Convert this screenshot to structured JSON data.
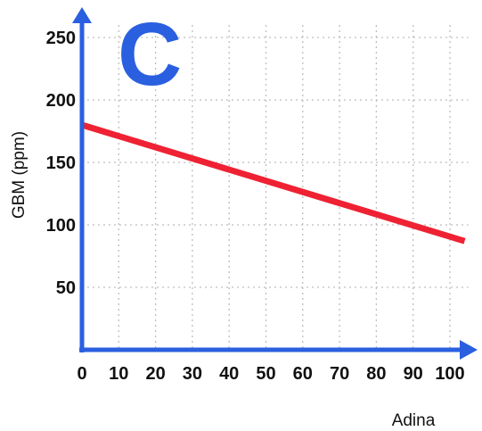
{
  "chart_data": {
    "type": "line",
    "panel_label": "C",
    "xlabel": "Adina",
    "ylabel": "GBM (ppm)",
    "xlim": [
      0,
      105
    ],
    "ylim": [
      0,
      260
    ],
    "x_ticks": [
      "0",
      "10",
      "20",
      "30",
      "40",
      "50",
      "60",
      "70",
      "80",
      "90",
      "100"
    ],
    "y_ticks": [
      "50",
      "100",
      "150",
      "200",
      "250"
    ],
    "grid": true,
    "series": [
      {
        "x": [
          0,
          104
        ],
        "y": [
          180,
          87
        ]
      }
    ]
  },
  "colors": {
    "axis": "#2a5fe0",
    "line": "#ee2233",
    "grid": "#bdbdbd",
    "panel_label": "#2a5fe0"
  }
}
